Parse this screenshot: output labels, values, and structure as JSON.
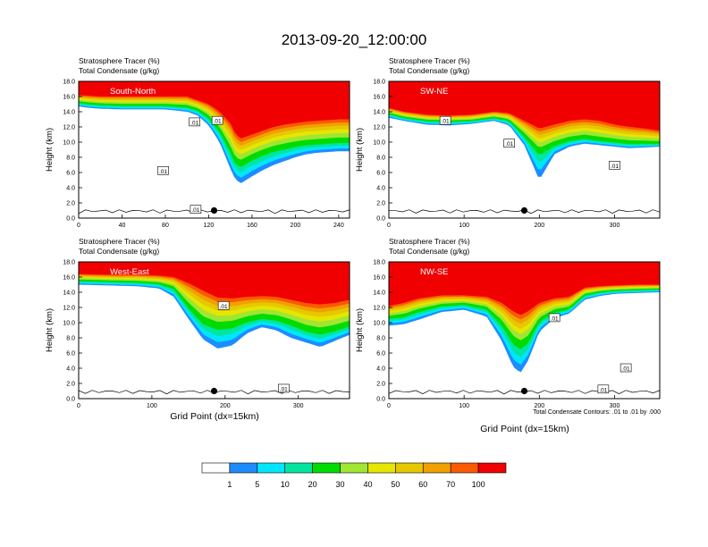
{
  "figure": {
    "title": "2013-09-20_12:00:00",
    "contour_note": "Total Condensate Contours: .01 to .01 by .000",
    "xlabel": "Grid Point (dx=15km)"
  },
  "colorbar": {
    "colors": [
      "#ffffff",
      "#1e8cff",
      "#00e6ff",
      "#00e6a0",
      "#00dc00",
      "#a0e632",
      "#e6e600",
      "#e6c800",
      "#f0a000",
      "#fa5a00",
      "#f00000"
    ],
    "labels": [
      "1",
      "5",
      "10",
      "20",
      "30",
      "40",
      "50",
      "60",
      "70",
      "100"
    ]
  },
  "chart_data": [
    {
      "type": "area",
      "panel_label": "South-North",
      "header_line1": "Stratosphere Tracer   (%)",
      "header_line2": "Total Condensate   (g/kg)",
      "ylabel": "Height (km)",
      "xlabel": "",
      "xlim": [
        0,
        250
      ],
      "ylim": [
        0,
        18
      ],
      "xticks": [
        "0",
        "40",
        "80",
        "120",
        "160",
        "200",
        "240"
      ],
      "yticks": [
        "0.0",
        "2.0",
        "4.0",
        "6.0",
        "8.0",
        "10.0",
        "12.0",
        "14.0",
        "16.0",
        "18.0"
      ],
      "contour_labels": [
        {
          "text": ".01",
          "x": 128,
          "y": 12.8
        },
        {
          "text": ".01",
          "x": 78,
          "y": 6.2
        },
        {
          "text": ".01",
          "x": 107,
          "y": 12.6
        },
        {
          "text": ".01",
          "x": 108,
          "y": 1.1
        }
      ],
      "marker": {
        "x": 125,
        "y": 1.0
      },
      "tracer_isolines": {
        "x": [
          0,
          10,
          20,
          40,
          60,
          80,
          100,
          110,
          120,
          130,
          140,
          145,
          150,
          160,
          170,
          180,
          190,
          200,
          210,
          220,
          230,
          240,
          250
        ],
        "t100": [
          16.2,
          16.1,
          16.0,
          16.0,
          16.0,
          16.0,
          16.0,
          15.5,
          15.0,
          14.0,
          12.5,
          11.0,
          10.5,
          11.0,
          11.5,
          12.0,
          12.3,
          12.5,
          12.7,
          12.8,
          12.9,
          13.0,
          13.0
        ],
        "t50": [
          15.2,
          15.0,
          14.9,
          14.8,
          14.8,
          14.8,
          14.6,
          14.2,
          13.2,
          11.5,
          8.8,
          7.2,
          7.0,
          7.8,
          8.4,
          8.9,
          9.2,
          9.5,
          9.7,
          9.8,
          9.9,
          10.0,
          10.0
        ],
        "t1": [
          14.7,
          14.5,
          14.4,
          14.3,
          14.3,
          14.3,
          14.0,
          13.5,
          12.2,
          10.0,
          6.5,
          5.0,
          4.6,
          5.5,
          6.3,
          7.0,
          7.5,
          8.0,
          8.4,
          8.6,
          8.7,
          8.8,
          8.8
        ]
      }
    },
    {
      "type": "area",
      "panel_label": "SW-NE",
      "header_line1": "Stratosphere Tracer   (%)",
      "header_line2": "Total Condensate   (g/kg)",
      "ylabel": "Height (km)",
      "xlabel": "",
      "xlim": [
        0,
        360
      ],
      "ylim": [
        0,
        18
      ],
      "xticks": [
        "0",
        "100",
        "200",
        "300"
      ],
      "yticks": [
        "0.0",
        "2.0",
        "4.0",
        "6.0",
        "8.0",
        "10.0",
        "12.0",
        "14.0",
        "16.0",
        "18.0"
      ],
      "contour_labels": [
        {
          "text": ".01",
          "x": 75,
          "y": 12.8
        },
        {
          "text": ".01",
          "x": 160,
          "y": 9.8
        },
        {
          "text": ".01",
          "x": 300,
          "y": 6.9
        }
      ],
      "marker": {
        "x": 180,
        "y": 1.0
      },
      "tracer_isolines": {
        "x": [
          0,
          20,
          50,
          80,
          110,
          140,
          160,
          180,
          200,
          220,
          240,
          260,
          280,
          300,
          320,
          340,
          360
        ],
        "t100": [
          14.5,
          14.0,
          13.6,
          13.5,
          13.6,
          14.0,
          13.8,
          12.8,
          11.8,
          12.3,
          12.8,
          13.0,
          12.8,
          12.3,
          12.0,
          11.8,
          11.5
        ],
        "t50": [
          13.7,
          13.2,
          12.8,
          12.7,
          12.8,
          13.2,
          12.8,
          10.8,
          8.6,
          9.6,
          10.2,
          10.5,
          10.2,
          10.0,
          9.8,
          9.8,
          9.8
        ],
        "t1": [
          13.2,
          12.8,
          12.3,
          12.2,
          12.4,
          12.8,
          12.2,
          9.6,
          5.0,
          8.4,
          9.4,
          9.8,
          9.6,
          9.4,
          9.2,
          9.3,
          9.4
        ]
      }
    },
    {
      "type": "area",
      "panel_label": "West-East",
      "header_line1": "Stratosphere Tracer   (%)",
      "header_line2": "Total Condensate   (g/kg)",
      "ylabel": "Height (km)",
      "xlabel": "",
      "xlim": [
        0,
        370
      ],
      "ylim": [
        0,
        18
      ],
      "xticks": [
        "0",
        "100",
        "200",
        "300"
      ],
      "yticks": [
        "0.0",
        "2.0",
        "4.0",
        "6.0",
        "8.0",
        "10.0",
        "12.0",
        "14.0",
        "16.0",
        "18.0"
      ],
      "contour_labels": [
        {
          "text": ".01",
          "x": 198,
          "y": 12.2
        },
        {
          "text": ".01",
          "x": 280,
          "y": 1.3
        }
      ],
      "marker": {
        "x": 185,
        "y": 1.0
      },
      "tracer_isolines": {
        "x": [
          0,
          40,
          80,
          110,
          130,
          150,
          170,
          190,
          210,
          230,
          250,
          270,
          290,
          310,
          330,
          350,
          370
        ],
        "t100": [
          16.4,
          16.3,
          16.3,
          16.2,
          16.0,
          15.2,
          14.2,
          13.3,
          13.2,
          13.4,
          13.5,
          13.4,
          13.0,
          12.6,
          12.4,
          12.6,
          13.0
        ],
        "t50": [
          15.5,
          15.4,
          15.3,
          15.1,
          14.5,
          12.0,
          10.0,
          9.3,
          9.5,
          10.2,
          10.6,
          10.4,
          9.8,
          9.0,
          8.6,
          9.0,
          9.6
        ],
        "t1": [
          15.0,
          14.9,
          14.8,
          14.5,
          13.4,
          10.5,
          7.8,
          6.6,
          7.0,
          8.6,
          9.4,
          9.0,
          8.0,
          7.4,
          6.8,
          7.6,
          8.4
        ]
      }
    },
    {
      "type": "area",
      "panel_label": "NW-SE",
      "header_line1": "Stratosphere Tracer   (%)",
      "header_line2": "Total Condensate   (g/kg)",
      "ylabel": "Height (km)",
      "xlabel": "Grid Point (dx=15km)",
      "xlim": [
        0,
        360
      ],
      "ylim": [
        0,
        18
      ],
      "xticks": [
        "0",
        "100",
        "200",
        "300"
      ],
      "yticks": [
        "0.0",
        "2.0",
        "4.0",
        "6.0",
        "8.0",
        "10.0",
        "12.0",
        "14.0",
        "16.0",
        "18.0"
      ],
      "contour_labels": [
        {
          "text": ".01",
          "x": 220,
          "y": 10.6
        },
        {
          "text": ".01",
          "x": 315,
          "y": 4.0
        },
        {
          "text": ".01",
          "x": 285,
          "y": 1.2
        }
      ],
      "marker": {
        "x": 180,
        "y": 1.0
      },
      "tracer_isolines": {
        "x": [
          0,
          20,
          40,
          70,
          100,
          130,
          150,
          165,
          175,
          185,
          200,
          220,
          240,
          260,
          280,
          300,
          330,
          360
        ],
        "t100": [
          12.2,
          12.6,
          13.2,
          13.6,
          13.6,
          13.4,
          12.6,
          11.5,
          11.0,
          11.5,
          12.6,
          13.2,
          13.4,
          14.6,
          14.8,
          14.9,
          15.0,
          15.0
        ],
        "t50": [
          10.6,
          10.8,
          11.5,
          12.2,
          12.4,
          11.8,
          9.8,
          7.5,
          6.8,
          7.5,
          10.2,
          11.4,
          11.8,
          13.6,
          14.0,
          14.2,
          14.3,
          14.4
        ],
        "t1": [
          9.6,
          9.8,
          10.4,
          11.4,
          11.7,
          10.8,
          7.6,
          4.2,
          3.4,
          5.0,
          8.8,
          10.6,
          11.2,
          13.0,
          13.5,
          13.8,
          13.9,
          14.0
        ]
      }
    }
  ]
}
